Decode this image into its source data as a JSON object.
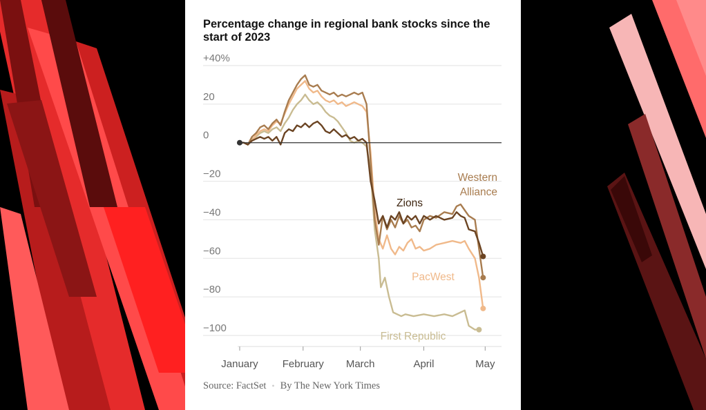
{
  "chart_data": {
    "type": "line",
    "title": "Percentage change in regional bank stocks since the start of 2023",
    "ylim": [
      -100,
      40
    ],
    "y_ticks": [
      {
        "value": 40,
        "label": "+40%"
      },
      {
        "value": 20,
        "label": "20"
      },
      {
        "value": 0,
        "label": "0"
      },
      {
        "value": -20,
        "label": "−20"
      },
      {
        "value": -40,
        "label": "−40"
      },
      {
        "value": -60,
        "label": "−60"
      },
      {
        "value": -80,
        "label": "−80"
      },
      {
        "value": -100,
        "label": "−100"
      }
    ],
    "x_ticks": [
      {
        "day": 0,
        "label": "January"
      },
      {
        "day": 31,
        "label": "February"
      },
      {
        "day": 59,
        "label": "March"
      },
      {
        "day": 90,
        "label": "April"
      },
      {
        "day": 120,
        "label": "May"
      }
    ],
    "x_range": [
      -1,
      128
    ],
    "grid": true,
    "zero_line": true,
    "series": [
      {
        "name": "First Republic",
        "color": "#c9bc92",
        "end_label": "First Republic",
        "points": [
          [
            0,
            0
          ],
          [
            2,
            0
          ],
          [
            4,
            -1
          ],
          [
            6,
            2
          ],
          [
            8,
            3
          ],
          [
            10,
            5
          ],
          [
            12,
            6
          ],
          [
            14,
            5
          ],
          [
            16,
            7
          ],
          [
            18,
            8
          ],
          [
            20,
            6
          ],
          [
            22,
            10
          ],
          [
            24,
            13
          ],
          [
            26,
            17
          ],
          [
            28,
            20
          ],
          [
            30,
            22
          ],
          [
            32,
            25
          ],
          [
            34,
            22
          ],
          [
            36,
            20
          ],
          [
            38,
            21
          ],
          [
            40,
            19
          ],
          [
            42,
            16
          ],
          [
            44,
            14
          ],
          [
            46,
            13
          ],
          [
            48,
            11
          ],
          [
            50,
            8
          ],
          [
            52,
            5
          ],
          [
            54,
            1
          ],
          [
            56,
            0
          ],
          [
            58,
            1
          ],
          [
            60,
            0
          ],
          [
            62,
            -2
          ],
          [
            64,
            -15
          ],
          [
            66,
            -45
          ],
          [
            68,
            -60
          ],
          [
            69,
            -75
          ],
          [
            71,
            -70
          ],
          [
            73,
            -80
          ],
          [
            75,
            -88
          ],
          [
            77,
            -89
          ],
          [
            79,
            -90
          ],
          [
            81,
            -89
          ],
          [
            85,
            -90
          ],
          [
            90,
            -89
          ],
          [
            95,
            -90
          ],
          [
            100,
            -89
          ],
          [
            104,
            -90
          ],
          [
            108,
            -88
          ],
          [
            110,
            -87
          ],
          [
            112,
            -95
          ],
          [
            115,
            -97
          ],
          [
            117,
            -97
          ]
        ]
      },
      {
        "name": "PacWest",
        "color": "#f0b98a",
        "end_label": "PacWest",
        "points": [
          [
            0,
            0
          ],
          [
            2,
            0
          ],
          [
            4,
            -1
          ],
          [
            6,
            1
          ],
          [
            8,
            4
          ],
          [
            10,
            6
          ],
          [
            12,
            7
          ],
          [
            14,
            6
          ],
          [
            16,
            9
          ],
          [
            18,
            11
          ],
          [
            20,
            10
          ],
          [
            22,
            15
          ],
          [
            24,
            20
          ],
          [
            26,
            24
          ],
          [
            28,
            28
          ],
          [
            30,
            30
          ],
          [
            32,
            32
          ],
          [
            34,
            28
          ],
          [
            36,
            26
          ],
          [
            38,
            27
          ],
          [
            40,
            24
          ],
          [
            42,
            22
          ],
          [
            44,
            21
          ],
          [
            46,
            22
          ],
          [
            48,
            20
          ],
          [
            50,
            21
          ],
          [
            52,
            19
          ],
          [
            54,
            20
          ],
          [
            56,
            21
          ],
          [
            58,
            20
          ],
          [
            60,
            19
          ],
          [
            62,
            16
          ],
          [
            64,
            -5
          ],
          [
            66,
            -35
          ],
          [
            68,
            -50
          ],
          [
            70,
            -55
          ],
          [
            72,
            -48
          ],
          [
            74,
            -55
          ],
          [
            76,
            -58
          ],
          [
            78,
            -54
          ],
          [
            80,
            -56
          ],
          [
            82,
            -52
          ],
          [
            84,
            -50
          ],
          [
            86,
            -55
          ],
          [
            88,
            -54
          ],
          [
            90,
            -56
          ],
          [
            93,
            -55
          ],
          [
            96,
            -53
          ],
          [
            100,
            -52
          ],
          [
            104,
            -51
          ],
          [
            108,
            -52
          ],
          [
            110,
            -51
          ],
          [
            112,
            -55
          ],
          [
            115,
            -60
          ],
          [
            117,
            -70
          ],
          [
            119,
            -86
          ]
        ]
      },
      {
        "name": "Western Alliance",
        "color": "#a87c4f",
        "end_label": "Western\nAlliance",
        "points": [
          [
            0,
            0
          ],
          [
            2,
            0
          ],
          [
            4,
            -1
          ],
          [
            6,
            3
          ],
          [
            8,
            5
          ],
          [
            10,
            8
          ],
          [
            12,
            9
          ],
          [
            14,
            7
          ],
          [
            16,
            10
          ],
          [
            18,
            12
          ],
          [
            20,
            9
          ],
          [
            22,
            16
          ],
          [
            24,
            22
          ],
          [
            26,
            26
          ],
          [
            28,
            30
          ],
          [
            30,
            33
          ],
          [
            32,
            35
          ],
          [
            34,
            30
          ],
          [
            36,
            29
          ],
          [
            38,
            30
          ],
          [
            40,
            27
          ],
          [
            42,
            26
          ],
          [
            44,
            25
          ],
          [
            46,
            26
          ],
          [
            48,
            24
          ],
          [
            50,
            25
          ],
          [
            52,
            24
          ],
          [
            54,
            25
          ],
          [
            56,
            26
          ],
          [
            58,
            25
          ],
          [
            60,
            26
          ],
          [
            62,
            20
          ],
          [
            64,
            -10
          ],
          [
            66,
            -40
          ],
          [
            68,
            -53
          ],
          [
            70,
            -38
          ],
          [
            72,
            -45
          ],
          [
            74,
            -40
          ],
          [
            76,
            -44
          ],
          [
            78,
            -38
          ],
          [
            80,
            -42
          ],
          [
            82,
            -40
          ],
          [
            84,
            -44
          ],
          [
            86,
            -43
          ],
          [
            88,
            -46
          ],
          [
            90,
            -40
          ],
          [
            93,
            -38
          ],
          [
            96,
            -39
          ],
          [
            100,
            -36
          ],
          [
            104,
            -37
          ],
          [
            106,
            -33
          ],
          [
            108,
            -32
          ],
          [
            110,
            -35
          ],
          [
            112,
            -38
          ],
          [
            115,
            -40
          ],
          [
            117,
            -55
          ],
          [
            119,
            -70
          ]
        ]
      },
      {
        "name": "Zions",
        "color": "#6b4423",
        "end_label": "Zions",
        "points": [
          [
            0,
            0
          ],
          [
            2,
            0
          ],
          [
            4,
            -1
          ],
          [
            6,
            1
          ],
          [
            8,
            2
          ],
          [
            10,
            3
          ],
          [
            12,
            2
          ],
          [
            14,
            3
          ],
          [
            16,
            1
          ],
          [
            18,
            3
          ],
          [
            20,
            -1
          ],
          [
            22,
            5
          ],
          [
            24,
            7
          ],
          [
            26,
            6
          ],
          [
            28,
            9
          ],
          [
            30,
            8
          ],
          [
            32,
            10
          ],
          [
            34,
            8
          ],
          [
            36,
            10
          ],
          [
            38,
            11
          ],
          [
            40,
            9
          ],
          [
            42,
            6
          ],
          [
            44,
            5
          ],
          [
            46,
            7
          ],
          [
            48,
            5
          ],
          [
            50,
            3
          ],
          [
            52,
            4
          ],
          [
            54,
            2
          ],
          [
            56,
            3
          ],
          [
            58,
            1
          ],
          [
            60,
            2
          ],
          [
            62,
            0
          ],
          [
            64,
            -20
          ],
          [
            66,
            -30
          ],
          [
            68,
            -42
          ],
          [
            70,
            -38
          ],
          [
            72,
            -44
          ],
          [
            74,
            -38
          ],
          [
            76,
            -40
          ],
          [
            78,
            -36
          ],
          [
            80,
            -42
          ],
          [
            82,
            -38
          ],
          [
            84,
            -40
          ],
          [
            86,
            -38
          ],
          [
            88,
            -42
          ],
          [
            90,
            -38
          ],
          [
            93,
            -40
          ],
          [
            96,
            -38
          ],
          [
            100,
            -40
          ],
          [
            104,
            -39
          ],
          [
            106,
            -36
          ],
          [
            108,
            -38
          ],
          [
            110,
            -39
          ],
          [
            112,
            -45
          ],
          [
            115,
            -46
          ],
          [
            117,
            -52
          ],
          [
            119,
            -59
          ]
        ]
      }
    ]
  },
  "footer": {
    "source": "Source: FactSet",
    "separator": "•",
    "credit": "By The New York Times"
  },
  "colors": {
    "background": "#000000",
    "card": "#ffffff",
    "accent_red": "#ff3b3b"
  }
}
